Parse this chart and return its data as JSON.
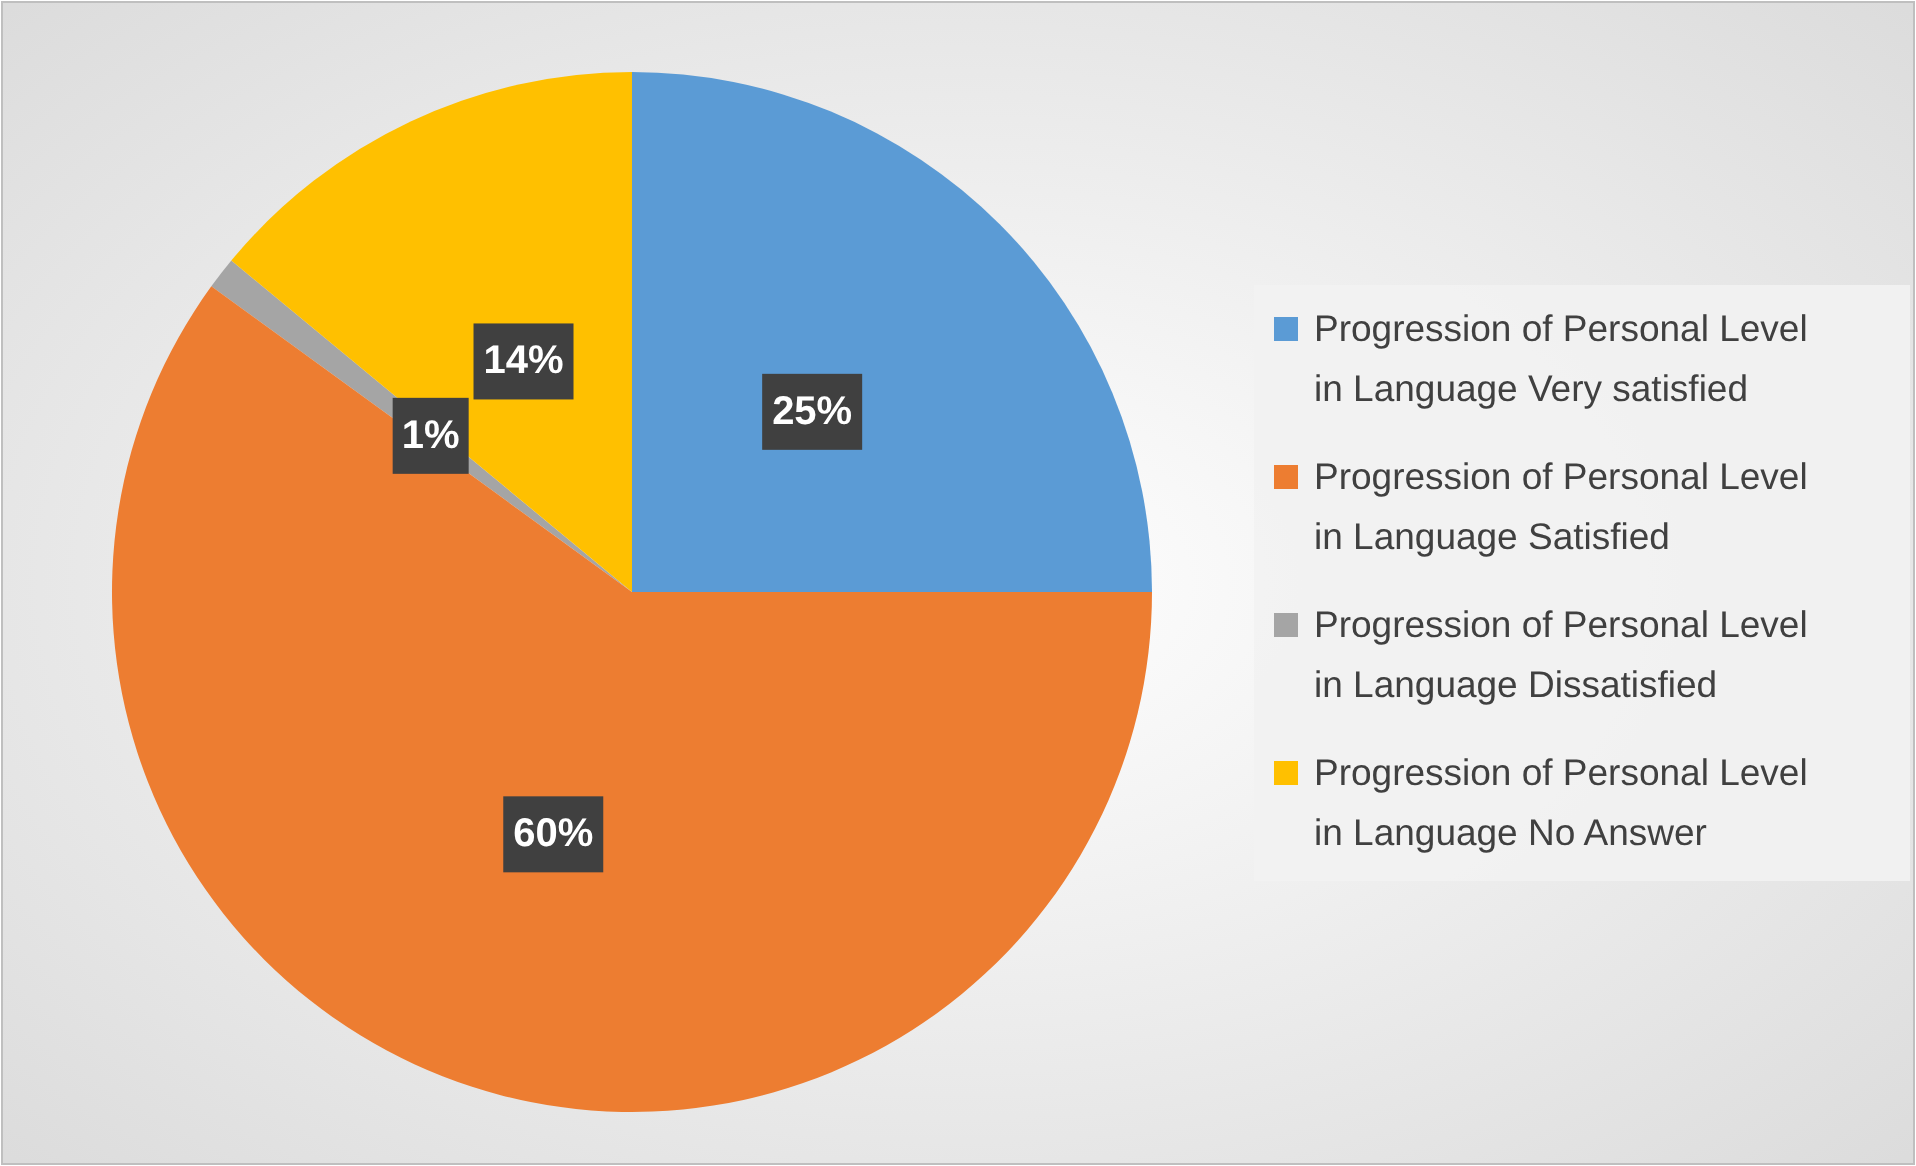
{
  "chart_data": {
    "type": "pie",
    "categories": [
      "Progression of Personal Level in Language Very satisfied",
      "Progression of Personal Level in Language Satisfied",
      "Progression of Personal Level in Language Dissatisfied",
      "Progression of Personal Level in Language No Answer"
    ],
    "values": [
      25,
      60,
      1,
      14
    ],
    "colors": [
      "#5b9bd5",
      "#ed7d31",
      "#a5a5a5",
      "#ffc000"
    ],
    "value_labels": [
      "25%",
      "60%",
      "1%",
      "14%"
    ],
    "legend": "right"
  }
}
